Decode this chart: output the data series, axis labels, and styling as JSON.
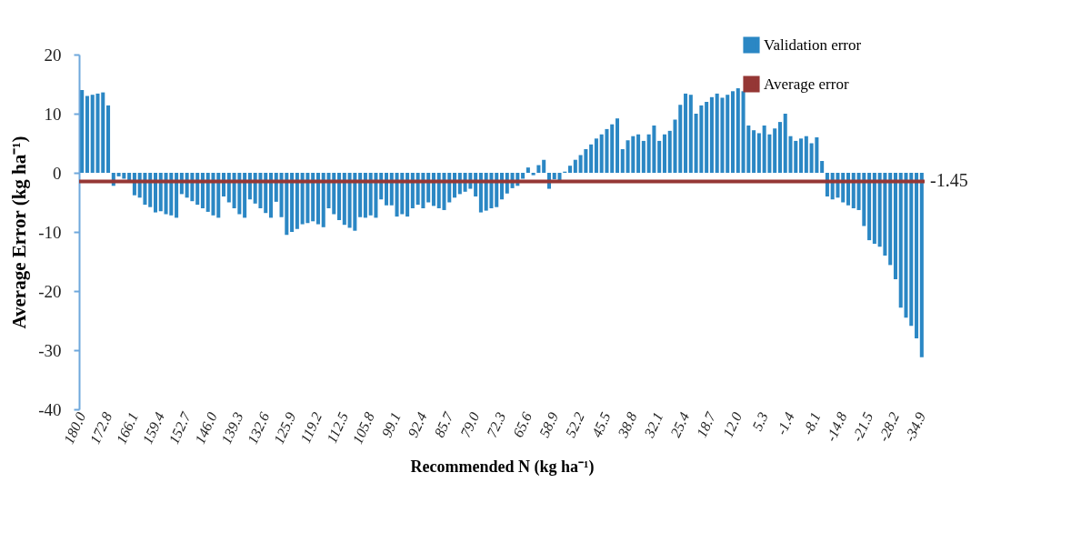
{
  "chart_data": {
    "type": "bar",
    "xlabel": "Recommended N (kg ha⁻¹)",
    "ylabel": "Average Error (kg ha⁻¹)",
    "categories": [
      "180.0",
      null,
      null,
      null,
      null,
      "172.8",
      null,
      null,
      null,
      null,
      "166.1",
      null,
      null,
      null,
      null,
      "159.4",
      null,
      null,
      null,
      null,
      "152.7",
      null,
      null,
      null,
      null,
      "146.0",
      null,
      null,
      null,
      null,
      "139.3",
      null,
      null,
      null,
      null,
      "132.6",
      null,
      null,
      null,
      null,
      "125.9",
      null,
      null,
      null,
      null,
      "119.2",
      null,
      null,
      null,
      null,
      "112.5",
      null,
      null,
      null,
      null,
      "105.8",
      null,
      null,
      null,
      null,
      "99.1",
      null,
      null,
      null,
      null,
      "92.4",
      null,
      null,
      null,
      null,
      "85.7",
      null,
      null,
      null,
      null,
      "79.0",
      null,
      null,
      null,
      null,
      "72.3",
      null,
      null,
      null,
      null,
      "65.6",
      null,
      null,
      null,
      null,
      "58.9",
      null,
      null,
      null,
      null,
      "52.2",
      null,
      null,
      null,
      null,
      "45.5",
      null,
      null,
      null,
      null,
      "38.8",
      null,
      null,
      null,
      null,
      "32.1",
      null,
      null,
      null,
      null,
      "25.4",
      null,
      null,
      null,
      null,
      "18.7",
      null,
      null,
      null,
      null,
      "12.0",
      null,
      null,
      null,
      null,
      "5.3",
      null,
      null,
      null,
      null,
      "-1.4",
      null,
      null,
      null,
      null,
      "-8.1",
      null,
      null,
      null,
      null,
      "-14.8",
      null,
      null,
      null,
      null,
      "-21.5",
      null,
      null,
      null,
      null,
      "-28.2",
      null,
      null,
      null,
      null,
      "-34.9"
    ],
    "series": [
      {
        "name": "Validation error",
        "color": "#2b87c4",
        "values": [
          14.0,
          13.0,
          13.2,
          13.4,
          13.6,
          11.4,
          -2.2,
          -0.6,
          -1.0,
          -1.4,
          -3.8,
          -4.2,
          -5.4,
          -5.8,
          -6.7,
          -6.5,
          -7.0,
          -7.2,
          -7.6,
          -3.6,
          -4.2,
          -4.8,
          -5.4,
          -6.0,
          -6.6,
          -7.2,
          -7.6,
          -4.0,
          -5.0,
          -6.0,
          -7.0,
          -7.6,
          -4.5,
          -5.2,
          -6.0,
          -6.8,
          -7.6,
          -4.9,
          -7.5,
          -10.5,
          -10.0,
          -9.5,
          -8.7,
          -8.5,
          -8.2,
          -8.7,
          -9.2,
          -6.0,
          -7.0,
          -8.0,
          -8.8,
          -9.3,
          -9.8,
          -7.5,
          -7.6,
          -7.2,
          -7.6,
          -4.5,
          -5.5,
          -5.5,
          -7.4,
          -7.0,
          -7.4,
          -6.0,
          -5.4,
          -6.0,
          -5.0,
          -5.6,
          -6.0,
          -6.3,
          -5.0,
          -4.2,
          -3.6,
          -3.2,
          -2.7,
          -4.0,
          -6.7,
          -6.4,
          -6.0,
          -5.8,
          -4.5,
          -3.5,
          -2.6,
          -2.2,
          -1.0,
          0.9,
          -0.4,
          1.3,
          2.2,
          -2.7,
          -1.1,
          -1.3,
          0.2,
          1.2,
          2.2,
          3.0,
          4.0,
          4.8,
          5.8,
          6.5,
          7.4,
          8.2,
          9.2,
          4.0,
          5.5,
          6.2,
          6.5,
          5.4,
          6.5,
          8.0,
          5.4,
          6.5,
          7.1,
          9.0,
          11.5,
          13.4,
          13.2,
          10.0,
          11.4,
          12.0,
          12.8,
          13.4,
          12.7,
          13.2,
          13.8,
          14.3,
          13.8,
          8.0,
          7.2,
          6.7,
          8.0,
          6.5,
          7.5,
          8.6,
          10.0,
          6.2,
          5.4,
          5.8,
          6.2,
          5.0,
          6.0,
          2.0,
          -4.0,
          -4.5,
          -4.2,
          -5.0,
          -5.5,
          -6.0,
          -6.3,
          -9.0,
          -11.4,
          -12.0,
          -12.5,
          -14.0,
          -15.6,
          -18.0,
          -22.8,
          -24.5,
          -25.9,
          -28.0,
          -31.2
        ]
      }
    ],
    "ylim": [
      -40,
      20
    ],
    "yticks": [
      -40,
      -30,
      -20,
      -10,
      0,
      10,
      20
    ],
    "ref_lines": [
      {
        "axis": "y",
        "value": -1.45,
        "label": "Average error",
        "color": "#953735"
      }
    ],
    "annotations": [
      "-1.45"
    ],
    "grid": false,
    "legend": "top right"
  }
}
